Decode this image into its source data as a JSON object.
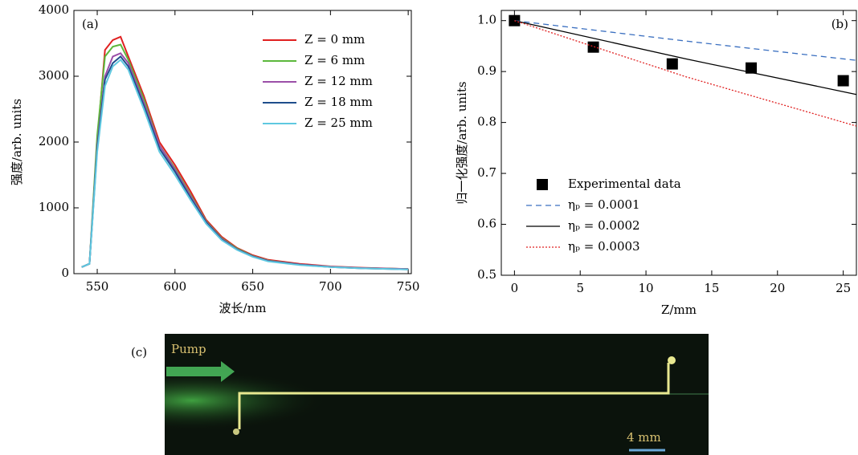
{
  "chart_data": [
    {
      "type": "line",
      "panel_label": "(a)",
      "xlabel": "波长/nm",
      "ylabel": "强度/arb. units",
      "x": [
        540,
        545,
        550,
        555,
        560,
        565,
        570,
        575,
        580,
        590,
        600,
        610,
        620,
        630,
        640,
        650,
        660,
        680,
        700,
        720,
        750
      ],
      "xlim": [
        535,
        752
      ],
      "xticks": [
        550,
        600,
        650,
        700,
        750
      ],
      "ylim": [
        0,
        4000
      ],
      "yticks": [
        0,
        1000,
        2000,
        3000,
        4000
      ],
      "legend": "upper right",
      "series": [
        {
          "name": "Z = 0 mm",
          "color": "#e02020",
          "values": [
            100,
            150,
            2000,
            3400,
            3550,
            3600,
            3300,
            3000,
            2700,
            2000,
            1650,
            1250,
            820,
            560,
            390,
            280,
            210,
            150,
            110,
            90,
            70
          ]
        },
        {
          "name": "Z = 6 mm",
          "color": "#5cb83c",
          "values": [
            100,
            150,
            2100,
            3300,
            3450,
            3480,
            3250,
            2950,
            2650,
            1950,
            1600,
            1200,
            800,
            540,
            380,
            270,
            200,
            140,
            105,
            85,
            70
          ]
        },
        {
          "name": "Z = 12 mm",
          "color": "#9b4fa8",
          "values": [
            100,
            150,
            1950,
            3000,
            3300,
            3350,
            3200,
            2900,
            2600,
            1950,
            1580,
            1180,
            790,
            530,
            370,
            265,
            195,
            140,
            105,
            85,
            70
          ]
        },
        {
          "name": "Z = 18 mm",
          "color": "#1f4e8c",
          "values": [
            100,
            150,
            1900,
            2950,
            3200,
            3300,
            3150,
            2850,
            2550,
            1900,
            1550,
            1150,
            780,
            520,
            365,
            260,
            190,
            135,
            100,
            80,
            65
          ]
        },
        {
          "name": "Z = 25 mm",
          "color": "#5fc8e0",
          "values": [
            100,
            150,
            1850,
            2850,
            3150,
            3250,
            3100,
            2800,
            2500,
            1850,
            1500,
            1120,
            760,
            510,
            360,
            255,
            185,
            130,
            100,
            80,
            65
          ]
        }
      ]
    },
    {
      "type": "line",
      "panel_label": "(b)",
      "xlabel": "Z/mm",
      "ylabel": "归一化强度/arb. units",
      "xlim": [
        -1,
        26
      ],
      "xticks": [
        0,
        5,
        10,
        15,
        20,
        25
      ],
      "ylim": [
        0.5,
        1.02
      ],
      "yticks": [
        0.5,
        0.6,
        0.7,
        0.8,
        0.9,
        {
          "value": 1,
          "label": "1.0"
        }
      ],
      "legend": "lower left",
      "series": [
        {
          "name": "Experimental data",
          "color": "#000000",
          "mode": "markers",
          "x": [
            0,
            6,
            12,
            18,
            25
          ],
          "values": [
            1.0,
            0.948,
            0.915,
            0.907,
            0.882
          ]
        },
        {
          "name": "ηₚ = 0.0001",
          "color": "#3a6fc0",
          "dash": "dashed",
          "x": [
            0,
            13,
            26
          ],
          "values": [
            1.0,
            0.96,
            0.922
          ]
        },
        {
          "name": "ηₚ = 0.0002",
          "color": "#000000",
          "dash": "solid",
          "x": [
            0,
            13,
            26
          ],
          "values": [
            1.0,
            0.925,
            0.855
          ]
        },
        {
          "name": "ηₚ = 0.0003",
          "color": "#e02020",
          "dash": "dotted",
          "x": [
            0,
            13,
            26
          ],
          "values": [
            1.0,
            0.89,
            0.793
          ]
        }
      ]
    }
  ],
  "panel_c": {
    "label": "(c)",
    "pump_label": "Pump",
    "scale_label": "4 mm"
  }
}
